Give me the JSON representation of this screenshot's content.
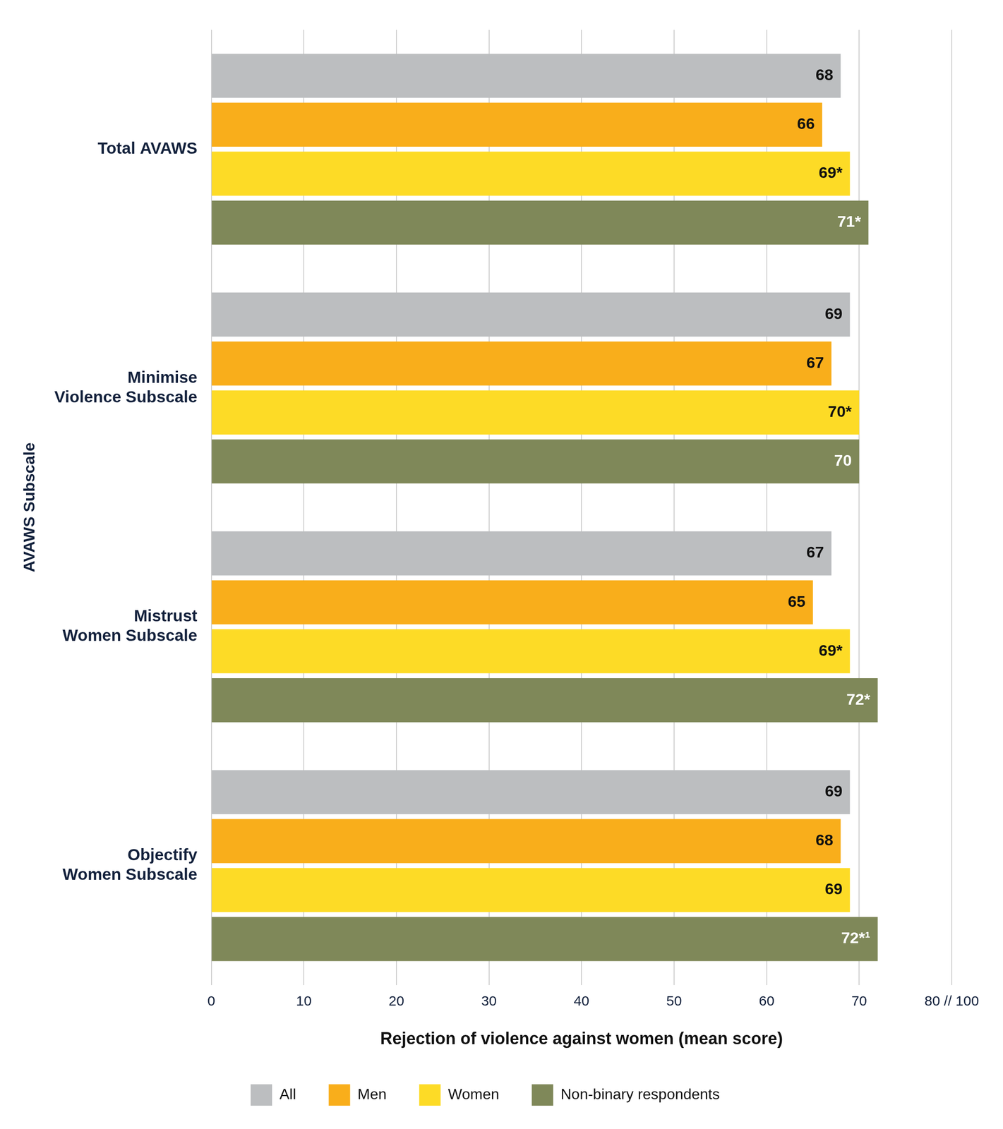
{
  "chart_data": {
    "type": "bar",
    "orientation": "horizontal",
    "x_label": "Rejection of violence against women (mean score)",
    "y_label": "AVAWS Subscale",
    "categories": [
      "Total AVAWS",
      "Minimise Violence Subscale",
      "Mistrust Women Subscale",
      "Objectify Women Subscale"
    ],
    "series": [
      {
        "name": "All",
        "color": "#bcbec0",
        "values": [
          68,
          69,
          67,
          69
        ]
      },
      {
        "name": "Men",
        "color": "#f9ae1b",
        "values": [
          66,
          67,
          65,
          68
        ]
      },
      {
        "name": "Women",
        "color": "#fddb26",
        "values": [
          69,
          70,
          69,
          69
        ],
        "value_labels": [
          "69*",
          "70*",
          "69*",
          "69"
        ]
      },
      {
        "name": "Non-binary respondents",
        "color": "#7f8859",
        "values": [
          71,
          70,
          72,
          72
        ],
        "value_labels": [
          "71*",
          "70",
          "72*",
          "72*¹"
        ]
      }
    ],
    "xlim": [
      0,
      80
    ],
    "xticks": [
      0,
      10,
      20,
      30,
      40,
      50,
      60,
      70,
      {
        "value": 80,
        "label": "80 // 100"
      }
    ],
    "grid": true,
    "legend": "bottom",
    "data_labels": true
  }
}
